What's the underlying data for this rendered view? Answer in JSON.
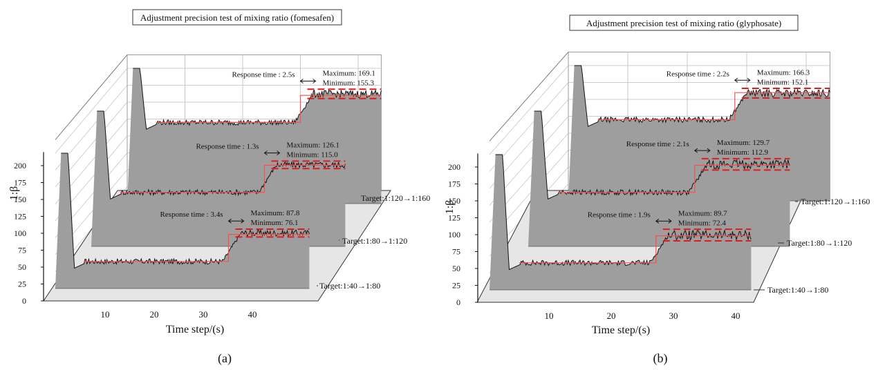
{
  "figure_labels": [
    "(a)",
    "(b)"
  ],
  "common": {
    "ylabel": "1:β",
    "xlabel": "Time step/(s)",
    "yticks": [
      "0",
      "25",
      "50",
      "75",
      "100",
      "125",
      "150",
      "175",
      "200"
    ],
    "xticks": [
      "10",
      "20",
      "30",
      "40"
    ],
    "colors": {
      "fill": "#9e9e9e",
      "line": "#111111",
      "target": "#ff4d4d",
      "band": "#e31a1c",
      "grid": "#bdbdbd"
    }
  },
  "chart_data": [
    {
      "type": "area",
      "title": "Adjustment precision test of mixing ratio (fomesafen)",
      "xlabel": "Time step/(s)",
      "ylabel": "1:β",
      "ylim": [
        0,
        220
      ],
      "xlim": [
        0,
        45
      ],
      "grid": true,
      "series": [
        {
          "name": "Target:1:40→1:80",
          "response_time": "Response time : 3.4s",
          "maximum": "Maximum: 87.8",
          "minimum": "Minimum: 76.1",
          "initial_peak": 200,
          "before": 40,
          "after": 80,
          "step_time": 30,
          "max_value": 87.8,
          "min_value": 76.1
        },
        {
          "name": "Target:1:80→1:120",
          "response_time": "Response time : 1.3s",
          "maximum": "Maximum: 126.1",
          "minimum": "Minimum: 115.0",
          "initial_peak": 200,
          "before": 80,
          "after": 120,
          "step_time": 30,
          "max_value": 126.1,
          "min_value": 115.0
        },
        {
          "name": "Target:1:120→1:160",
          "response_time": "Response time : 2.5s",
          "maximum": "Maximum: 169.1",
          "minimum": "Minimum: 155.3",
          "initial_peak": 200,
          "before": 120,
          "after": 160,
          "step_time": 30,
          "max_value": 169.1,
          "min_value": 155.3
        }
      ]
    },
    {
      "type": "area",
      "title": "Adjustment precision  test of mixing ratio (glyphosate)",
      "xlabel": "Time step/(s)",
      "ylabel": "1:β",
      "ylim": [
        0,
        220
      ],
      "xlim": [
        0,
        45
      ],
      "grid": true,
      "series": [
        {
          "name": "Target:1:40→1:80",
          "response_time": "Response time : 1.9s",
          "maximum": "Maximum: 89.7",
          "minimum": "Minimum: 72.4",
          "initial_peak": 200,
          "before": 40,
          "after": 80,
          "step_time": 28,
          "max_value": 89.7,
          "min_value": 72.4
        },
        {
          "name": "Target:1:80→1:120",
          "response_time": "Response time : 2.1s",
          "maximum": "Maximum: 129.7",
          "minimum": "Minimum: 112.9",
          "initial_peak": 200,
          "before": 80,
          "after": 120,
          "step_time": 28,
          "max_value": 129.7,
          "min_value": 112.9
        },
        {
          "name": "Target:1:120→1:160",
          "response_time": "Response time : 2.2s",
          "maximum": "Maximum: 166.3",
          "minimum": "Minimum: 152.1",
          "initial_peak": 200,
          "before": 120,
          "after": 160,
          "step_time": 28,
          "max_value": 166.3,
          "min_value": 152.1
        }
      ]
    }
  ]
}
